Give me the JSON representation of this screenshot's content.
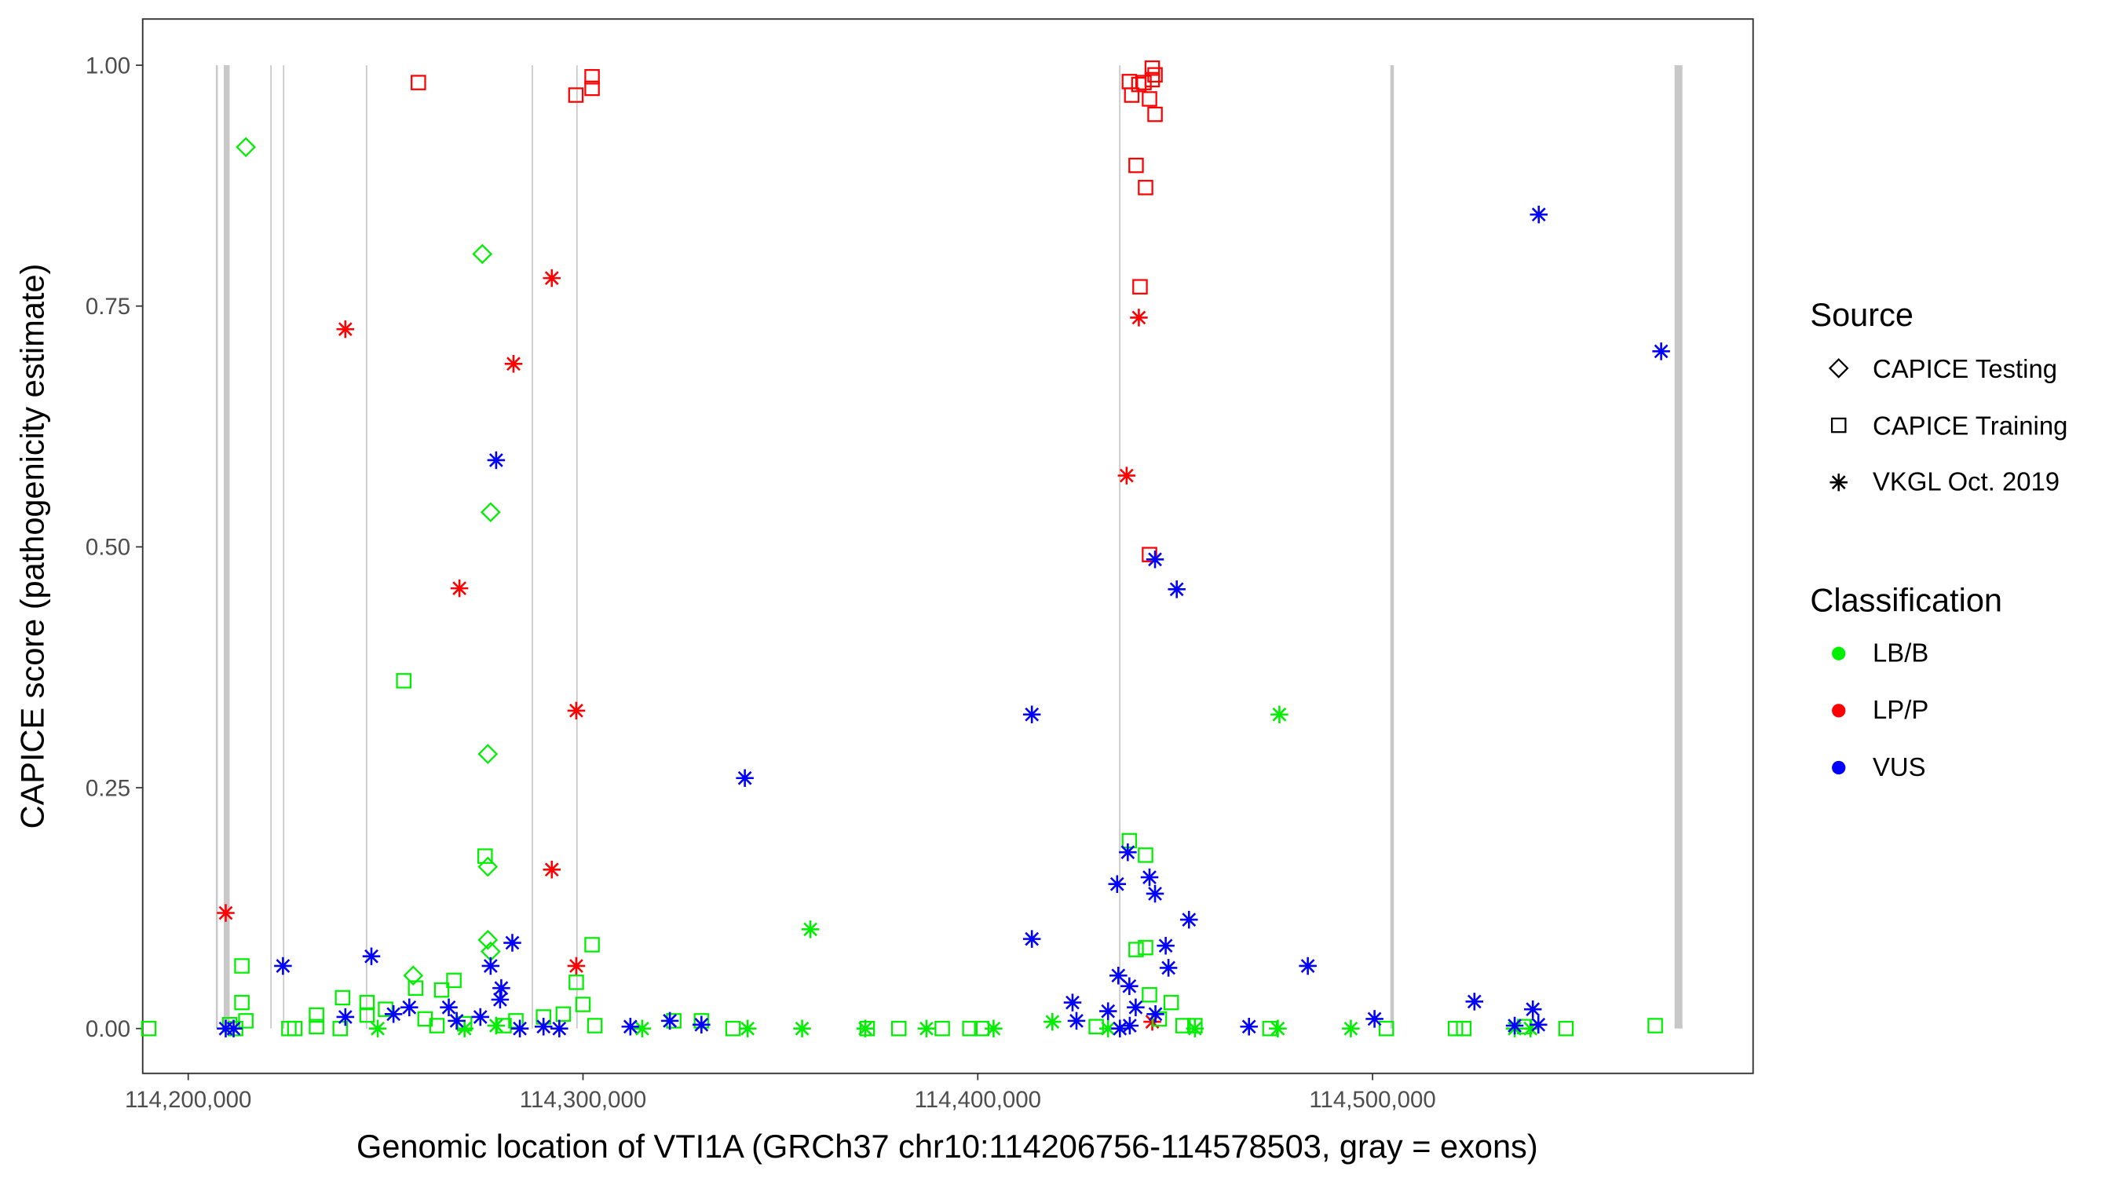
{
  "chart_data": {
    "type": "scatter",
    "title": "",
    "xlabel": "Genomic location of VTI1A (GRCh37 chr10:114206756-114578503, gray = exons)",
    "ylabel": "CAPICE score (pathogenicity estimate)",
    "xlim": [
      114180000,
      114587000
    ],
    "ylim": [
      -0.05,
      1.05
    ],
    "x_ticks": [
      114200000,
      114300000,
      114400000,
      114500000
    ],
    "x_tick_labels": [
      "114,200,000",
      "114,300,000",
      "114,400,000",
      "114,500,000"
    ],
    "y_ticks": [
      0,
      0.25,
      0.5,
      0.75,
      1.0
    ],
    "y_tick_labels": [
      "0.00",
      "0.25",
      "0.50",
      "0.75",
      "1.00"
    ],
    "grid": false,
    "exons": [
      [
        114207000,
        114207500
      ],
      [
        114209000,
        114210500
      ],
      [
        114220800,
        114221100
      ],
      [
        114224000,
        114224300
      ],
      [
        114245000,
        114245300
      ],
      [
        114287000,
        114287300
      ],
      [
        114298300,
        114298600
      ],
      [
        114435800,
        114436100
      ],
      [
        114504500,
        114505400
      ],
      [
        114576500,
        114578503
      ]
    ],
    "legend_source": {
      "title": "Source",
      "items": [
        {
          "key": "T",
          "label": "CAPICE Testing",
          "shape": "diamond"
        },
        {
          "key": "R",
          "label": "CAPICE Training",
          "shape": "square"
        },
        {
          "key": "V",
          "label": "VKGL Oct. 2019",
          "shape": "asterisk"
        }
      ]
    },
    "legend_class": {
      "title": "Classification",
      "items": [
        {
          "key": "B",
          "label": "LB/B",
          "color": "#00ee00"
        },
        {
          "key": "P",
          "label": "LP/P",
          "color": "#ff0000"
        },
        {
          "key": "U",
          "label": "VUS",
          "color": "#0000ff"
        }
      ]
    },
    "legend_placement": "right",
    "points": [
      [
        114258300,
        0.982,
        "R",
        "P"
      ],
      [
        114298200,
        0.969,
        "R",
        "P"
      ],
      [
        114302300,
        0.988,
        "R",
        "P"
      ],
      [
        114302300,
        0.976,
        "R",
        "P"
      ],
      [
        114438400,
        0.983,
        "R",
        "P"
      ],
      [
        114439000,
        0.969,
        "R",
        "P"
      ],
      [
        114440800,
        0.98,
        "R",
        "P"
      ],
      [
        114442100,
        0.982,
        "R",
        "P"
      ],
      [
        114444200,
        0.997,
        "R",
        "P"
      ],
      [
        114444900,
        0.99,
        "R",
        "P"
      ],
      [
        114444200,
        0.985,
        "R",
        "P"
      ],
      [
        114443500,
        0.965,
        "R",
        "P"
      ],
      [
        114444900,
        0.949,
        "R",
        "P"
      ],
      [
        114440100,
        0.896,
        "R",
        "P"
      ],
      [
        114442500,
        0.873,
        "R",
        "P"
      ],
      [
        114441100,
        0.77,
        "R",
        "P"
      ],
      [
        114443500,
        0.492,
        "R",
        "P"
      ],
      [
        114209500,
        0.12,
        "V",
        "P"
      ],
      [
        114239800,
        0.726,
        "V",
        "P"
      ],
      [
        114282400,
        0.69,
        "V",
        "P"
      ],
      [
        114292100,
        0.779,
        "V",
        "P"
      ],
      [
        114268700,
        0.457,
        "V",
        "P"
      ],
      [
        114292100,
        0.165,
        "V",
        "P"
      ],
      [
        114298300,
        0.33,
        "V",
        "P"
      ],
      [
        114298300,
        0.065,
        "V",
        "P"
      ],
      [
        114440800,
        0.738,
        "V",
        "P"
      ],
      [
        114437700,
        0.574,
        "V",
        "P"
      ],
      [
        114444200,
        0.007,
        "V",
        "P"
      ],
      [
        114214600,
        0.915,
        "T",
        "B"
      ],
      [
        114274500,
        0.804,
        "T",
        "B"
      ],
      [
        114276600,
        0.536,
        "T",
        "B"
      ],
      [
        114275900,
        0.285,
        "T",
        "B"
      ],
      [
        114275900,
        0.168,
        "T",
        "B"
      ],
      [
        114275900,
        0.092,
        "T",
        "B"
      ],
      [
        114257000,
        0.055,
        "T",
        "B"
      ],
      [
        114276600,
        0.08,
        "T",
        "B"
      ],
      [
        114254600,
        0.361,
        "R",
        "B"
      ],
      [
        114275200,
        0.179,
        "R",
        "B"
      ],
      [
        114213600,
        0.065,
        "R",
        "B"
      ],
      [
        114213600,
        0.027,
        "R",
        "B"
      ],
      [
        114214600,
        0.008,
        "R",
        "B"
      ],
      [
        114239100,
        0.032,
        "R",
        "B"
      ],
      [
        114245300,
        0.027,
        "R",
        "B"
      ],
      [
        114245300,
        0.014,
        "R",
        "B"
      ],
      [
        114232500,
        0.014,
        "R",
        "B"
      ],
      [
        114232500,
        0.002,
        "R",
        "B"
      ],
      [
        114302300,
        0.087,
        "R",
        "B"
      ],
      [
        114298300,
        0.048,
        "R",
        "B"
      ],
      [
        114267300,
        0.05,
        "R",
        "B"
      ],
      [
        114264200,
        0.04,
        "R",
        "B"
      ],
      [
        114257600,
        0.042,
        "R",
        "B"
      ],
      [
        114438400,
        0.195,
        "R",
        "B"
      ],
      [
        114442500,
        0.18,
        "R",
        "B"
      ],
      [
        114440100,
        0.082,
        "R",
        "B"
      ],
      [
        114442500,
        0.084,
        "R",
        "B"
      ],
      [
        114443500,
        0.035,
        "R",
        "B"
      ],
      [
        114449000,
        0.027,
        "R",
        "B"
      ],
      [
        114571600,
        0.003,
        "R",
        "B"
      ],
      [
        114549000,
        0.0,
        "R",
        "B"
      ],
      [
        114503500,
        0.0,
        "R",
        "B"
      ],
      [
        114523100,
        0.0,
        "R",
        "B"
      ],
      [
        114538500,
        0.002,
        "R",
        "B"
      ],
      [
        114190000,
        0.0,
        "R",
        "B"
      ],
      [
        114238500,
        0.0,
        "R",
        "B"
      ],
      [
        114270000,
        0.005,
        "R",
        "B"
      ],
      [
        114280000,
        0.003,
        "R",
        "B"
      ],
      [
        114290000,
        0.012,
        "R",
        "B"
      ],
      [
        114295000,
        0.015,
        "R",
        "B"
      ],
      [
        114300000,
        0.025,
        "R",
        "B"
      ],
      [
        114303000,
        0.003,
        "R",
        "B"
      ],
      [
        114260000,
        0.01,
        "R",
        "B"
      ],
      [
        114250000,
        0.02,
        "R",
        "B"
      ],
      [
        114225500,
        0.0,
        "R",
        "B"
      ],
      [
        114227000,
        0.0,
        "R",
        "B"
      ],
      [
        114210500,
        0.004,
        "R",
        "B"
      ],
      [
        114212000,
        0.0,
        "R",
        "B"
      ],
      [
        114323000,
        0.008,
        "R",
        "B"
      ],
      [
        114330000,
        0.008,
        "R",
        "B"
      ],
      [
        114338000,
        0.0,
        "R",
        "B"
      ],
      [
        114372000,
        0.0,
        "R",
        "B"
      ],
      [
        114380000,
        0.0,
        "R",
        "B"
      ],
      [
        114391000,
        0.0,
        "R",
        "B"
      ],
      [
        114398000,
        0.0,
        "R",
        "B"
      ],
      [
        114401000,
        0.0,
        "R",
        "B"
      ],
      [
        114430000,
        0.002,
        "R",
        "B"
      ],
      [
        114446000,
        0.01,
        "R",
        "B"
      ],
      [
        114452000,
        0.003,
        "R",
        "B"
      ],
      [
        114455000,
        0.003,
        "R",
        "B"
      ],
      [
        114474000,
        0.0,
        "R",
        "B"
      ],
      [
        114521000,
        0.0,
        "R",
        "B"
      ],
      [
        114263000,
        0.003,
        "R",
        "B"
      ],
      [
        114283000,
        0.008,
        "R",
        "B"
      ],
      [
        114357600,
        0.103,
        "V",
        "B"
      ],
      [
        114476400,
        0.326,
        "V",
        "B"
      ],
      [
        114418900,
        0.007,
        "V",
        "B"
      ],
      [
        114355500,
        0.0,
        "V",
        "B"
      ],
      [
        114341700,
        0.0,
        "V",
        "B"
      ],
      [
        114476000,
        0.0,
        "V",
        "B"
      ],
      [
        114536000,
        0.0,
        "V",
        "B"
      ],
      [
        114494500,
        0.0,
        "V",
        "B"
      ],
      [
        114371500,
        0.0,
        "V",
        "B"
      ],
      [
        114387000,
        0.0,
        "V",
        "B"
      ],
      [
        114404000,
        0.0,
        "V",
        "B"
      ],
      [
        114455000,
        0.0,
        "V",
        "B"
      ],
      [
        114433000,
        0.0,
        "V",
        "B"
      ],
      [
        114248000,
        0.0,
        "V",
        "B"
      ],
      [
        114270000,
        0.0,
        "V",
        "B"
      ],
      [
        114315000,
        0.0,
        "V",
        "B"
      ],
      [
        114278000,
        0.003,
        "V",
        "B"
      ],
      [
        114540000,
        0.0,
        "V",
        "B"
      ],
      [
        114278000,
        0.59,
        "V",
        "U"
      ],
      [
        114341000,
        0.26,
        "V",
        "U"
      ],
      [
        114413700,
        0.326,
        "V",
        "U"
      ],
      [
        114413700,
        0.093,
        "V",
        "U"
      ],
      [
        114542100,
        0.845,
        "V",
        "U"
      ],
      [
        114573100,
        0.703,
        "V",
        "U"
      ],
      [
        114444900,
        0.487,
        "V",
        "U"
      ],
      [
        114450400,
        0.456,
        "V",
        "U"
      ],
      [
        114438000,
        0.183,
        "V",
        "U"
      ],
      [
        114435300,
        0.15,
        "V",
        "U"
      ],
      [
        114443500,
        0.157,
        "V",
        "U"
      ],
      [
        114444900,
        0.14,
        "V",
        "U"
      ],
      [
        114453500,
        0.113,
        "V",
        "U"
      ],
      [
        114447600,
        0.086,
        "V",
        "U"
      ],
      [
        114448300,
        0.063,
        "V",
        "U"
      ],
      [
        114483600,
        0.065,
        "V",
        "U"
      ],
      [
        114435600,
        0.055,
        "V",
        "U"
      ],
      [
        114438400,
        0.044,
        "V",
        "U"
      ],
      [
        114224000,
        0.065,
        "V",
        "U"
      ],
      [
        114246400,
        0.075,
        "V",
        "U"
      ],
      [
        114282100,
        0.089,
        "V",
        "U"
      ],
      [
        114276600,
        0.065,
        "V",
        "U"
      ],
      [
        114279300,
        0.042,
        "V",
        "U"
      ],
      [
        114279000,
        0.03,
        "V",
        "U"
      ],
      [
        114525800,
        0.028,
        "V",
        "U"
      ],
      [
        114540600,
        0.02,
        "V",
        "U"
      ],
      [
        114424000,
        0.027,
        "V",
        "U"
      ],
      [
        114500500,
        0.01,
        "V",
        "U"
      ],
      [
        114468700,
        0.002,
        "V",
        "U"
      ],
      [
        114312000,
        0.002,
        "V",
        "U"
      ],
      [
        114322000,
        0.008,
        "V",
        "U"
      ],
      [
        114330000,
        0.004,
        "V",
        "U"
      ],
      [
        114209500,
        0.0,
        "V",
        "U"
      ],
      [
        114211500,
        0.0,
        "V",
        "U"
      ],
      [
        114239800,
        0.012,
        "V",
        "U"
      ],
      [
        114252000,
        0.015,
        "V",
        "U"
      ],
      [
        114256000,
        0.022,
        "V",
        "U"
      ],
      [
        114266000,
        0.022,
        "V",
        "U"
      ],
      [
        114268000,
        0.008,
        "V",
        "U"
      ],
      [
        114274000,
        0.012,
        "V",
        "U"
      ],
      [
        114284000,
        0.0,
        "V",
        "U"
      ],
      [
        114290000,
        0.002,
        "V",
        "U"
      ],
      [
        114294000,
        0.0,
        "V",
        "U"
      ],
      [
        114425000,
        0.008,
        "V",
        "U"
      ],
      [
        114436000,
        0.0,
        "V",
        "U"
      ],
      [
        114440000,
        0.022,
        "V",
        "U"
      ],
      [
        114445000,
        0.015,
        "V",
        "U"
      ],
      [
        114536000,
        0.003,
        "V",
        "U"
      ],
      [
        114542000,
        0.004,
        "V",
        "U"
      ],
      [
        114438500,
        0.003,
        "V",
        "U"
      ],
      [
        114433000,
        0.018,
        "V",
        "U"
      ]
    ]
  }
}
